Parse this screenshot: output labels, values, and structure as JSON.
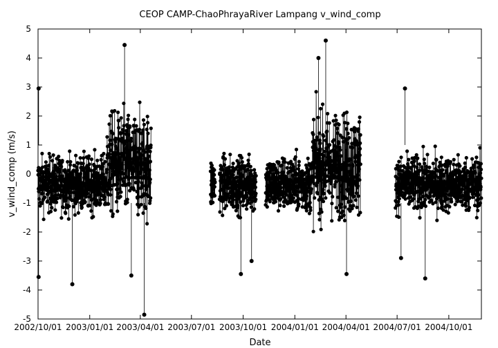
{
  "chart_data": {
    "type": "scatter",
    "title": "CEOP CAMP-ChaoPhrayaRiver Lampang  v_wind_comp",
    "xlabel": "Date",
    "ylabel": "v_wind_comp (m/s)",
    "ylim": [
      -5,
      5
    ],
    "xlim": [
      "2002/10/01",
      "2004/11/28"
    ],
    "yticks": [
      -5,
      -4,
      -3,
      -2,
      -1,
      0,
      1,
      2,
      3,
      4,
      5
    ],
    "xticks": [
      "2002/10/01",
      "2003/01/01",
      "2003/04/01",
      "2003/07/01",
      "2003/10/01",
      "2004/01/01",
      "2004/04/01",
      "2004/07/01",
      "2004/10/01"
    ],
    "grid": false,
    "legend": "none",
    "marker_color": "#000000",
    "segments": [
      {
        "start": "2002/10/01",
        "end": "2003/04/20"
      },
      {
        "start": "2003/08/04",
        "end": "2003/08/12"
      },
      {
        "start": "2003/08/20",
        "end": "2003/10/24"
      },
      {
        "start": "2003/11/10",
        "end": "2004/04/27"
      },
      {
        "start": "2004/06/28",
        "end": "2004/11/28"
      }
    ],
    "notable_points": [
      {
        "x": "2002/10/02",
        "y": 2.95
      },
      {
        "x": "2002/10/02",
        "y": -3.55
      },
      {
        "x": "2002/12/01",
        "y": -3.8
      },
      {
        "x": "2003/03/04",
        "y": 4.45
      },
      {
        "x": "2003/03/16",
        "y": -3.5
      },
      {
        "x": "2003/04/08",
        "y": -4.85
      },
      {
        "x": "2003/09/27",
        "y": -3.45
      },
      {
        "x": "2003/10/16",
        "y": -3.0
      },
      {
        "x": "2004/02/25",
        "y": 4.6
      },
      {
        "x": "2004/02/12",
        "y": 4.0
      },
      {
        "x": "2004/04/02",
        "y": -3.45
      },
      {
        "x": "2004/07/08",
        "y": -2.9
      },
      {
        "x": "2004/08/20",
        "y": -3.6
      },
      {
        "x": "2004/07/15",
        "y": 2.95
      }
    ]
  }
}
